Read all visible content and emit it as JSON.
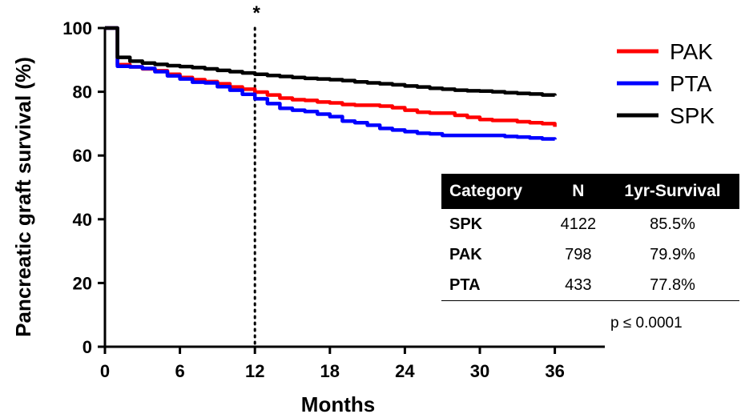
{
  "chart_data": {
    "type": "line",
    "xlabel": "Months",
    "ylabel": "Pancreatic graft survival (%)",
    "xlim": [
      0,
      40
    ],
    "ylim": [
      0,
      100
    ],
    "xticks": [
      0,
      6,
      12,
      18,
      24,
      30,
      36
    ],
    "yticks": [
      0,
      20,
      40,
      60,
      80,
      100
    ],
    "grid": false,
    "legend_position": "top-right",
    "reference_line": {
      "x": 12,
      "style": "dotted",
      "label": "*"
    },
    "series": [
      {
        "name": "PAK",
        "color": "#ff0000",
        "x": [
          0,
          1,
          2,
          3,
          4,
          5,
          6,
          7,
          8,
          9,
          10,
          11,
          12,
          13,
          14,
          15,
          16,
          17,
          18,
          19,
          20,
          21,
          22,
          23,
          24,
          25,
          26,
          27,
          28,
          29,
          30,
          31,
          32,
          33,
          34,
          35,
          36
        ],
        "y": [
          100,
          88.5,
          87.8,
          87.2,
          86.6,
          85.5,
          84.5,
          83.8,
          83.2,
          82.5,
          81.5,
          80.8,
          79.9,
          79.0,
          78.0,
          77.5,
          77.3,
          76.8,
          76.5,
          76.0,
          75.8,
          75.8,
          75.5,
          75.0,
          74.2,
          73.6,
          73.3,
          73.3,
          72.6,
          72.0,
          71.3,
          71.0,
          71.0,
          70.6,
          70.3,
          70.0,
          69.0
        ]
      },
      {
        "name": "PTA",
        "color": "#0000ff",
        "x": [
          0,
          1,
          2,
          3,
          4,
          5,
          6,
          7,
          8,
          9,
          10,
          11,
          12,
          13,
          14,
          15,
          16,
          17,
          18,
          19,
          20,
          21,
          22,
          23,
          24,
          25,
          26,
          27,
          28,
          29,
          30,
          31,
          32,
          33,
          34,
          35,
          36
        ],
        "y": [
          100,
          88.0,
          87.8,
          87.3,
          86.3,
          85.0,
          84.0,
          83.0,
          82.8,
          81.6,
          80.5,
          79.2,
          77.8,
          76.3,
          74.8,
          74.2,
          73.8,
          73.0,
          72.2,
          70.8,
          70.3,
          69.5,
          68.5,
          68.0,
          67.5,
          67.0,
          66.8,
          66.3,
          66.3,
          66.3,
          66.3,
          66.3,
          66.0,
          65.8,
          65.5,
          65.2,
          65.0
        ]
      },
      {
        "name": "SPK",
        "color": "#000000",
        "x": [
          0,
          1,
          2,
          3,
          4,
          5,
          6,
          7,
          8,
          9,
          10,
          11,
          12,
          13,
          14,
          15,
          16,
          17,
          18,
          19,
          20,
          21,
          22,
          23,
          24,
          25,
          26,
          27,
          28,
          29,
          30,
          31,
          32,
          33,
          34,
          35,
          36
        ],
        "y": [
          100,
          90.8,
          89.6,
          89.0,
          88.6,
          88.2,
          87.9,
          87.6,
          87.2,
          86.7,
          86.3,
          85.9,
          85.5,
          85.1,
          84.8,
          84.5,
          84.2,
          84.0,
          83.8,
          83.5,
          83.1,
          82.8,
          82.5,
          82.2,
          81.8,
          81.5,
          81.1,
          80.8,
          80.5,
          80.3,
          80.2,
          80.0,
          79.7,
          79.5,
          79.3,
          79.0,
          78.8
        ]
      }
    ]
  },
  "table": {
    "headers": [
      "Category",
      "N",
      "1yr-Survival"
    ],
    "rows": [
      [
        "SPK",
        "4122",
        "85.5%"
      ],
      [
        "PAK",
        "798",
        "79.9%"
      ],
      [
        "PTA",
        "433",
        "77.8%"
      ]
    ]
  },
  "p_value": "p ≤ 0.0001"
}
